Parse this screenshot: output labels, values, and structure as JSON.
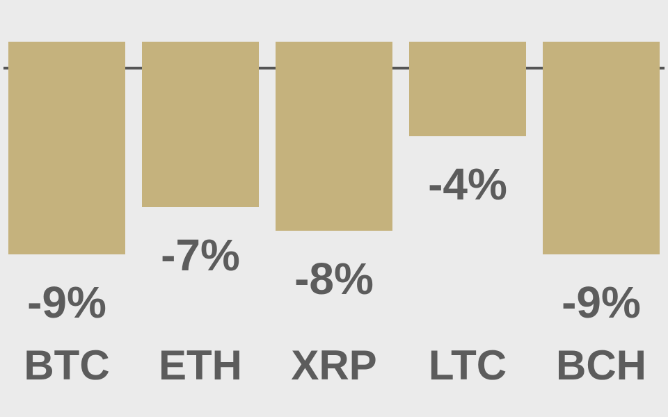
{
  "chart_data": {
    "type": "bar",
    "categories": [
      "BTC",
      "ETH",
      "XRP",
      "LTC",
      "BCH"
    ],
    "values": [
      -9,
      -7,
      -8,
      -4,
      -9
    ],
    "value_labels": [
      "-9%",
      "-7%",
      "-8%",
      "-4%",
      "-9%"
    ],
    "color": "#c5b27d"
  }
}
